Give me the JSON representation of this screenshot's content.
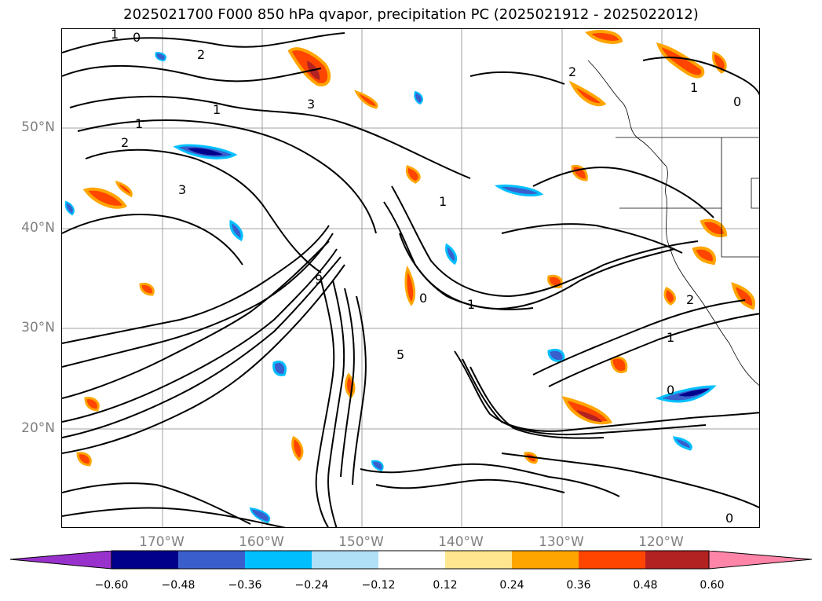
{
  "title": "2025021700 F000 850 hPa qvapor, precipitation PC (2025021912 - 2025022012)",
  "lat_labels": [
    "50°N",
    "40°N",
    "30°N",
    "20°N"
  ],
  "lon_labels": [
    "170°W",
    "160°W",
    "150°W",
    "140°W",
    "130°W",
    "120°W"
  ],
  "colorbar": {
    "ticks": [
      "−0.60",
      "−0.48",
      "−0.36",
      "−0.24",
      "−0.12",
      "0.12",
      "0.24",
      "0.36",
      "0.48",
      "0.60"
    ],
    "colors": [
      "#9932cc",
      "#00008b",
      "#3a5fcd",
      "#00bfff",
      "#b0e0f8",
      "#ffffff",
      "#ffe68f",
      "#ffa500",
      "#ff4500",
      "#b22222",
      "#ff85a8"
    ]
  },
  "contour_labels": [
    "1",
    "2",
    "3",
    "0",
    "1",
    "2",
    "5",
    "1",
    "9",
    "1",
    "0",
    "2",
    "1",
    "0",
    "1",
    "0",
    "2",
    "3",
    "1",
    "0"
  ]
}
